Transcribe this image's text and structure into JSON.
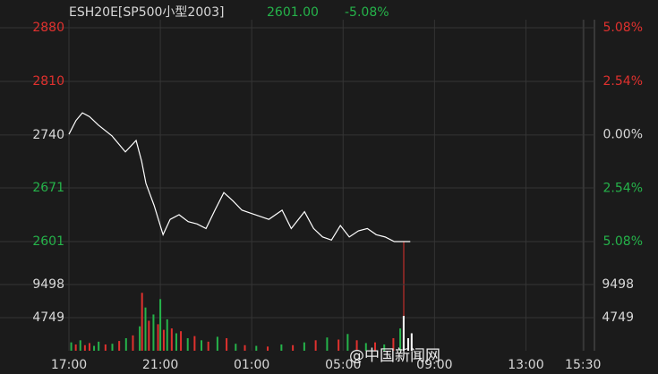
{
  "chart_data": {
    "type": "line",
    "symbol": "ESH20E[SP500小型2003]",
    "last_price": "2601.00",
    "change": "-5.08%",
    "watermark": "@中国新闻网",
    "line_color": "#ffffff",
    "up_color": "#e0312e",
    "down_color": "#25b34a",
    "flat_color": "#d8d8d8",
    "grid": true,
    "x": [
      0,
      0.31,
      0.59,
      0.9,
      1.29,
      1.88,
      2.47,
      2.94,
      3.18,
      3.37,
      3.73,
      4.12,
      4.43,
      4.82,
      5.22,
      5.61,
      6.0,
      6.39,
      6.78,
      7.18,
      7.57,
      7.96,
      8.35,
      8.75,
      9.33,
      9.73,
      10.31,
      10.71,
      11.1,
      11.49,
      11.88,
      12.27,
      12.67,
      13.06,
      13.45,
      13.84,
      14.24,
      14.94
    ],
    "values": [
      2741,
      2759,
      2769,
      2764,
      2753,
      2739,
      2718,
      2733,
      2706,
      2677,
      2648,
      2610,
      2630,
      2636,
      2627,
      2624,
      2618,
      2642,
      2665,
      2654,
      2642,
      2638,
      2634,
      2630,
      2642,
      2618,
      2640,
      2618,
      2607,
      2603,
      2622,
      2607,
      2615,
      2618,
      2610,
      2607,
      2601,
      2601
    ],
    "xlim": [
      0,
      23
    ],
    "xticks": [
      {
        "value": 0,
        "label": "17:00"
      },
      {
        "value": 4,
        "label": "21:00"
      },
      {
        "value": 8,
        "label": "01:00"
      },
      {
        "value": 12,
        "label": "05:00"
      },
      {
        "value": 16,
        "label": "09:00"
      },
      {
        "value": 20,
        "label": "13:00"
      },
      {
        "value": 22.5,
        "label": "15:30"
      }
    ],
    "ylim": [
      2601,
      2880
    ],
    "yticks": [
      2880,
      2810,
      2740,
      2671,
      2601
    ],
    "y2lim": [
      -5.08,
      5.08
    ],
    "y2ticks": [
      {
        "value": 5.08,
        "label": "5.08%"
      },
      {
        "value": 2.54,
        "label": "2.54%"
      },
      {
        "value": 0,
        "label": "0.00%"
      },
      {
        "value": -2.54,
        "label": "2.54%"
      },
      {
        "value": -5.08,
        "label": "5.08%"
      }
    ],
    "volume": {
      "type": "bar",
      "x": [
        0.1,
        0.3,
        0.5,
        0.7,
        0.9,
        1.1,
        1.3,
        1.6,
        1.9,
        2.2,
        2.5,
        2.8,
        3.1,
        3.2,
        3.35,
        3.5,
        3.7,
        3.9,
        4.0,
        4.15,
        4.3,
        4.5,
        4.7,
        4.9,
        5.2,
        5.5,
        5.8,
        6.1,
        6.5,
        6.9,
        7.3,
        7.7,
        8.2,
        8.7,
        9.3,
        9.8,
        10.3,
        10.8,
        11.3,
        11.8,
        12.2,
        12.6,
        13.0,
        13.4,
        13.8,
        14.2,
        14.5,
        14.65,
        14.85,
        15.0
      ],
      "values": [
        1200,
        900,
        1500,
        800,
        1100,
        700,
        1300,
        900,
        1000,
        1400,
        1800,
        2200,
        3500,
        8300,
        6200,
        4300,
        5200,
        3800,
        7400,
        3000,
        4500,
        3200,
        2500,
        2800,
        1800,
        2100,
        1500,
        1300,
        2000,
        1800,
        1000,
        800,
        700,
        600,
        900,
        800,
        1200,
        1500,
        1900,
        1600,
        2400,
        1500,
        1100,
        1200,
        900,
        1800,
        3200,
        5000,
        1800,
        2500
      ],
      "colors": [
        "#25b34a",
        "#e0312e",
        "#25b34a",
        "#e0312e",
        "#e0312e",
        "#25b34a",
        "#25b34a",
        "#e0312e",
        "#25b34a",
        "#e0312e",
        "#25b34a",
        "#e0312e",
        "#25b34a",
        "#e0312e",
        "#25b34a",
        "#e0312e",
        "#25b34a",
        "#e0312e",
        "#25b34a",
        "#e0312e",
        "#25b34a",
        "#e0312e",
        "#25b34a",
        "#e0312e",
        "#25b34a",
        "#e0312e",
        "#25b34a",
        "#e0312e",
        "#25b34a",
        "#e0312e",
        "#25b34a",
        "#e0312e",
        "#25b34a",
        "#e0312e",
        "#25b34a",
        "#e0312e",
        "#25b34a",
        "#e0312e",
        "#25b34a",
        "#e0312e",
        "#25b34a",
        "#e0312e",
        "#25b34a",
        "#e0312e",
        "#25b34a",
        "#e0312e",
        "#25b34a",
        "#ffffff",
        "#ffffff",
        "#ffffff"
      ],
      "ylim": [
        0,
        11800
      ],
      "yticks": [
        9498,
        4749
      ]
    }
  }
}
